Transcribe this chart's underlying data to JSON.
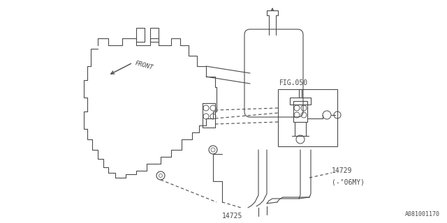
{
  "bg_color": "#ffffff",
  "line_color": "#4a4a4a",
  "text_color": "#4a4a4a",
  "fig_width": 6.4,
  "fig_height": 3.2,
  "dpi": 100,
  "labels": {
    "fig050": "FIG.050",
    "part14725": "14725",
    "part14729": "14729",
    "part14729_note": "(-’06MY)",
    "front": "FRONT",
    "part_num": "A081001170"
  }
}
